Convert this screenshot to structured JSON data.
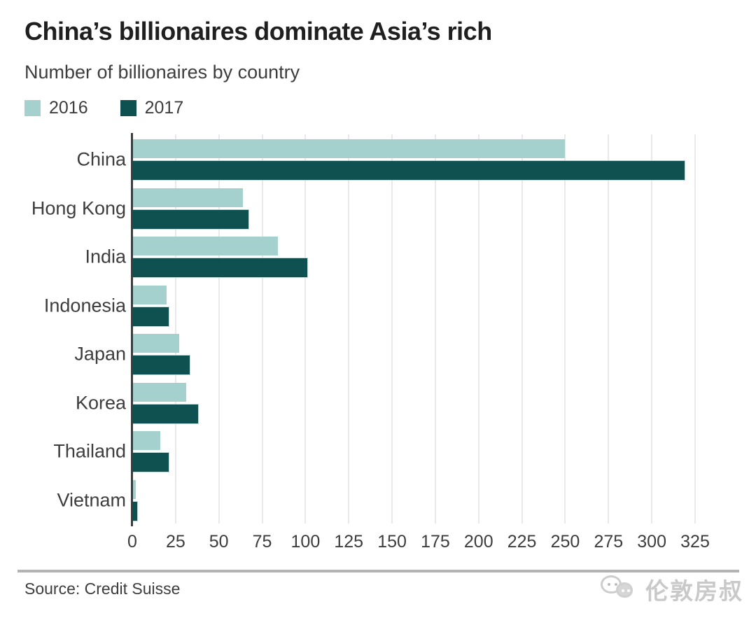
{
  "header": {
    "title": "China’s billionaires dominate Asia’s rich",
    "subtitle": "Number of billionaires by country"
  },
  "legend": [
    {
      "label": "2016",
      "color": "#a4d0ce"
    },
    {
      "label": "2017",
      "color": "#0f5051"
    }
  ],
  "chart_data": {
    "type": "bar",
    "orientation": "horizontal",
    "title": "China’s billionaires dominate Asia’s rich",
    "subtitle": "Number of billionaires by country",
    "categories": [
      "China",
      "Hong Kong",
      "India",
      "Indonesia",
      "Japan",
      "Korea",
      "Thailand",
      "Vietnam"
    ],
    "series": [
      {
        "name": "2016",
        "color": "#a4d0ce",
        "values": [
          250,
          64,
          84,
          20,
          27,
          31,
          16,
          2
        ]
      },
      {
        "name": "2017",
        "color": "#0f5051",
        "values": [
          319,
          67,
          101,
          21,
          33,
          38,
          21,
          3
        ]
      }
    ],
    "xticks": [
      0,
      25,
      50,
      75,
      100,
      125,
      150,
      175,
      200,
      225,
      250,
      275,
      300,
      325
    ],
    "xlim": [
      0,
      339
    ],
    "xlabel": "",
    "ylabel": "",
    "grid": "vertical",
    "legend_position": "top-left"
  },
  "footer": {
    "source": "Source: Credit Suisse",
    "watermark": "伦敦房叔"
  }
}
